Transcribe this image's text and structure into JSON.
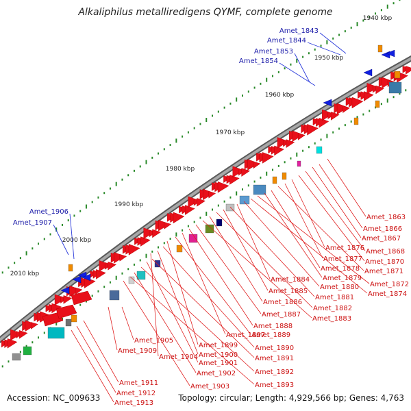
{
  "title": "Alkaliphilus metalliredigens QYMF, complete genome",
  "footer": {
    "accession": "Accession: NC_009633",
    "summary": "Topology: circular; Length: 4,929,566 bp; Genes: 4,763"
  },
  "colors": {
    "forward_gene": "#e8101a",
    "reverse_gene": "#1020e0",
    "backbone": "#888888",
    "tick": "#2a8a2a",
    "blue_label": "#1a1aa8",
    "red_label": "#cc1010",
    "leader_blue": "#2a3adb",
    "leader_red": "#e02020"
  },
  "kbp_ticks": [
    "1940 kbp",
    "1950 kbp",
    "1960 kbp",
    "1970 kbp",
    "1980 kbp",
    "1990 kbp",
    "2000 kbp",
    "2010 kbp"
  ],
  "blue_labels": [
    "Amet_1843",
    "Amet_1844",
    "Amet_1853",
    "Amet_1854",
    "Amet_1906",
    "Amet_1907"
  ],
  "red_labels": [
    "Amet_1863",
    "Amet_1866",
    "Amet_1867",
    "Amet_1868",
    "Amet_1870",
    "Amet_1876",
    "Amet_1877",
    "Amet_1871",
    "Amet_1878",
    "Amet_1879",
    "Amet_1872",
    "Amet_1874",
    "Amet_1880",
    "Amet_1884",
    "Amet_1881",
    "Amet_1885",
    "Amet_1882",
    "Amet_1886",
    "Amet_1883",
    "Amet_1887",
    "Amet_1888",
    "Amet_1897",
    "Amet_1889",
    "Amet_1905",
    "Amet_1899",
    "Amet_1890",
    "Amet_1909",
    "Amet_1900",
    "Amet_1904",
    "Amet_1891",
    "Amet_1901",
    "Amet_1892",
    "Amet_1902",
    "Amet_1911",
    "Amet_1893",
    "Amet_1903",
    "Amet_1912",
    "Amet_1913"
  ]
}
